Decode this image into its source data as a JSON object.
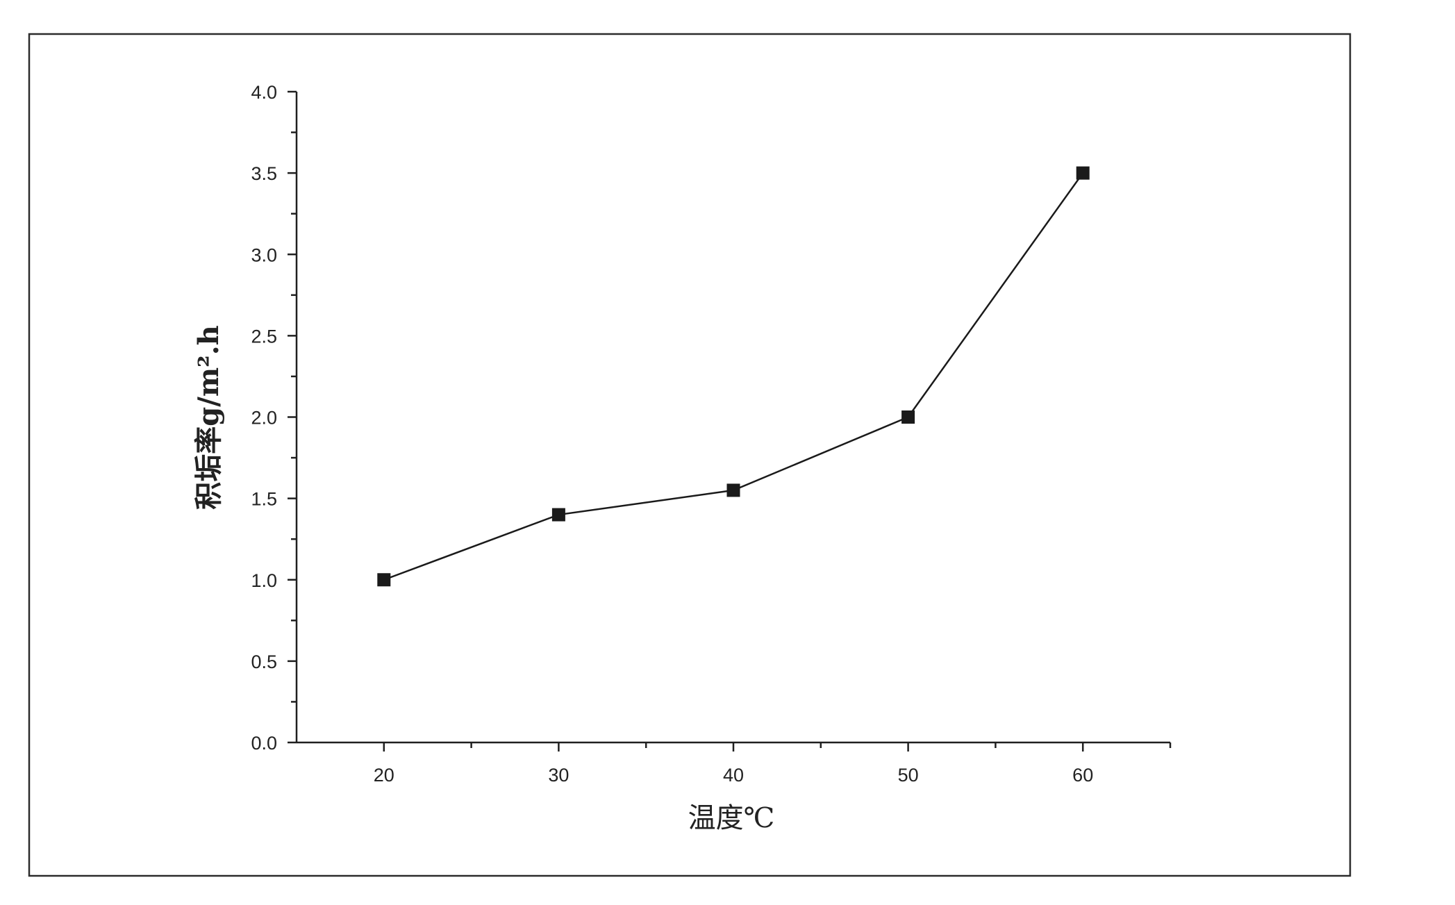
{
  "chart_data": {
    "type": "line",
    "x": [
      20,
      30,
      40,
      50,
      60
    ],
    "series": [
      {
        "values": [
          1.0,
          1.4,
          1.55,
          2.0,
          3.5
        ],
        "marker": "square",
        "color": "#1a1a1a"
      }
    ],
    "title": "",
    "xlabel": "温度℃",
    "ylabel": "积垢率g/m².h",
    "xlim": [
      15,
      65
    ],
    "ylim": [
      0,
      4.0
    ],
    "xticks": [
      20,
      30,
      40,
      50,
      60
    ],
    "xtick_labels": [
      "20",
      "30",
      "40",
      "50",
      "60"
    ],
    "xminor_ticks": [
      25,
      35,
      45,
      55,
      65
    ],
    "yticks": [
      0,
      0.5,
      1.0,
      1.5,
      2.0,
      2.5,
      3.0,
      3.5,
      4.0
    ],
    "ytick_labels": [
      "0.0",
      "0.5",
      "1.0",
      "1.5",
      "2.0",
      "2.5",
      "3.0",
      "3.5",
      "4.0"
    ],
    "yminor_ticks": [
      0.25,
      0.75,
      1.25,
      1.75,
      2.25,
      2.75,
      3.25,
      3.75
    ],
    "grid": false,
    "legend": "none"
  }
}
